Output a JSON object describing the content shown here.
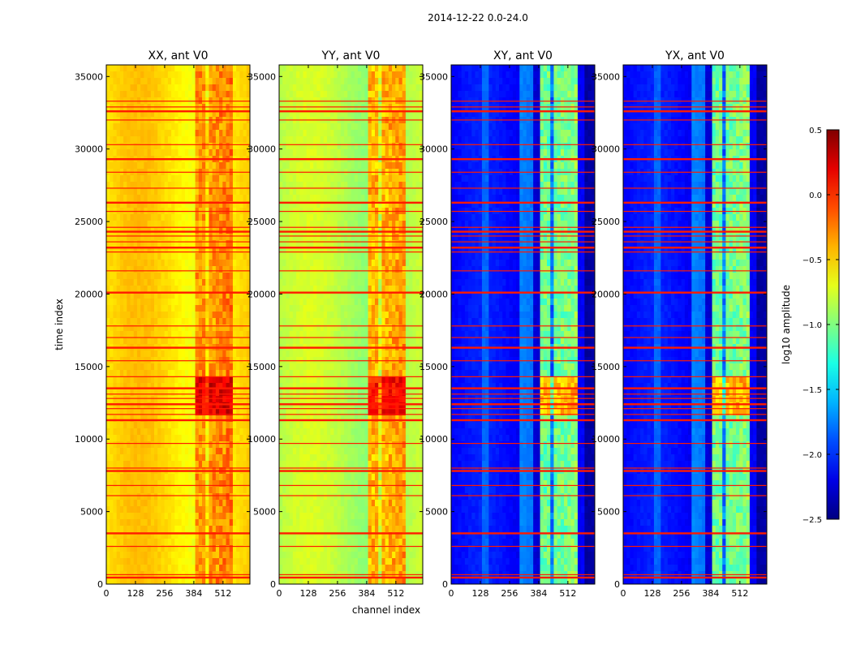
{
  "chart_data": {
    "type": "heatmap",
    "suptitle": "2014-12-22 0.0-24.0",
    "xlabel": "channel index",
    "ylabel": "time index",
    "xlim": [
      0,
      630
    ],
    "ylim": [
      0,
      35800
    ],
    "xticks": [
      0,
      128,
      256,
      384,
      512
    ],
    "yticks": [
      0,
      5000,
      10000,
      15000,
      20000,
      25000,
      30000,
      35000
    ],
    "rfi_rows": [
      450,
      650,
      2600,
      3500,
      6100,
      6800,
      7800,
      8000,
      9700,
      11300,
      11700,
      12100,
      12400,
      12800,
      13100,
      13500,
      14300,
      15400,
      16300,
      17000,
      17800,
      20100,
      21600,
      22900,
      23200,
      23600,
      24000,
      24300,
      24600,
      25700,
      26300,
      27300,
      28400,
      29300,
      30300,
      32000,
      32600,
      32900,
      33300
    ],
    "panels": [
      {
        "title": "XX, ant V0",
        "base_level": -0.55,
        "band_boost": 0.35
      },
      {
        "title": "YY, ant V0",
        "base_level": -0.85,
        "band_boost": 0.55
      },
      {
        "title": "XY, ant V0",
        "base_level": -2.15,
        "band_boost": 1.2
      },
      {
        "title": "YX, ant V0",
        "base_level": -2.15,
        "band_boost": 1.2
      }
    ],
    "colorbar": {
      "label": "log10 amplitude",
      "range": [
        -2.5,
        0.5
      ],
      "ticks": [
        "0.5",
        "0.0",
        "−0.5",
        "−1.0",
        "−1.5",
        "−2.0",
        "−2.5"
      ],
      "colormap": "jet"
    }
  }
}
